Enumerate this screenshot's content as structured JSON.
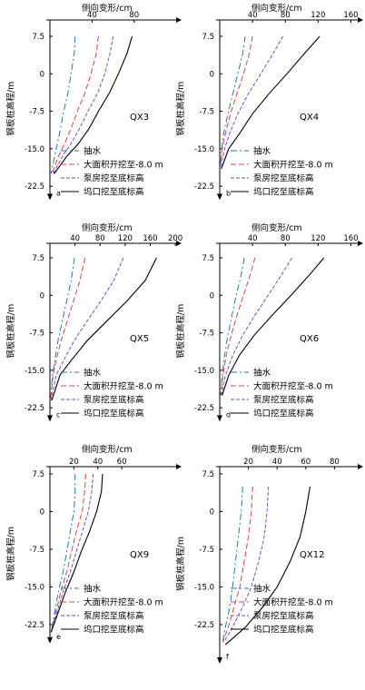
{
  "figure": {
    "x_axis_label": "侧向变形/cm",
    "y_axis_label": "钢板桩高程/m",
    "legend_items": [
      "抽水",
      "大面积开挖至-8.0 m",
      "泵房挖至底标高",
      "坞口挖至底标高"
    ],
    "series_colors": [
      "#1f77c0",
      "#e0403a",
      "#6a52c8",
      "#000000"
    ]
  },
  "chart_data": [
    {
      "panel_label": "a",
      "pile_id": "QX3",
      "type": "line",
      "xticks": [
        40,
        80
      ],
      "xlim": [
        0,
        125
      ],
      "yticks": [
        7.5,
        0,
        -7.5,
        -15.0,
        -22.5
      ],
      "ylim": [
        -24,
        9
      ],
      "series": [
        {
          "name": "抽水",
          "points": [
            [
              24,
              7.5
            ],
            [
              23,
              4
            ],
            [
              20,
              0
            ],
            [
              17,
              -4
            ],
            [
              13,
              -7.5
            ],
            [
              10,
              -11
            ],
            [
              7,
              -14
            ],
            [
              4,
              -17
            ],
            [
              1,
              -20
            ]
          ]
        },
        {
          "name": "大面积开挖至-8.0 m",
          "points": [
            [
              46,
              7.5
            ],
            [
              44,
              4
            ],
            [
              39,
              0
            ],
            [
              33,
              -4
            ],
            [
              26,
              -7.5
            ],
            [
              20,
              -11
            ],
            [
              14,
              -14
            ],
            [
              8,
              -16.5
            ],
            [
              2,
              -20
            ]
          ]
        },
        {
          "name": "泵房挖至底标高",
          "points": [
            [
              60,
              7.5
            ],
            [
              57,
              4
            ],
            [
              52,
              0
            ],
            [
              45,
              -4
            ],
            [
              36,
              -7.5
            ],
            [
              28,
              -11
            ],
            [
              20,
              -14
            ],
            [
              12,
              -16.5
            ],
            [
              3,
              -20
            ]
          ]
        },
        {
          "name": "坞口挖至底标高",
          "points": [
            [
              78,
              7.5
            ],
            [
              73,
              4
            ],
            [
              65,
              0
            ],
            [
              56,
              -4
            ],
            [
              46,
              -7.5
            ],
            [
              37,
              -11
            ],
            [
              27,
              -14
            ],
            [
              16,
              -16.5
            ],
            [
              4,
              -20
            ]
          ]
        }
      ],
      "legend": true
    },
    {
      "panel_label": "b",
      "pile_id": "QX4",
      "type": "line",
      "xticks": [
        40,
        80,
        120,
        160
      ],
      "xlim": [
        0,
        175
      ],
      "yticks": [
        7.5,
        0,
        -7.5,
        -15.0,
        -22.5
      ],
      "ylim": [
        -24,
        9
      ],
      "series": [
        {
          "name": "抽水",
          "points": [
            [
              31,
              7.5
            ],
            [
              28,
              4
            ],
            [
              22,
              0
            ],
            [
              16,
              -4
            ],
            [
              10,
              -8
            ],
            [
              6,
              -11
            ],
            [
              3,
              -14
            ],
            [
              1,
              -18
            ]
          ]
        },
        {
          "name": "大面积开挖至-8.0 m",
          "points": [
            [
              40,
              7.5
            ],
            [
              36,
              4
            ],
            [
              29,
              0
            ],
            [
              21,
              -4
            ],
            [
              13,
              -8
            ],
            [
              7,
              -12
            ],
            [
              3,
              -15
            ],
            [
              1,
              -18
            ]
          ]
        },
        {
          "name": "泵房挖至底标高",
          "points": [
            [
              77,
              7.5
            ],
            [
              65,
              4
            ],
            [
              50,
              0
            ],
            [
              35,
              -4
            ],
            [
              22,
              -8
            ],
            [
              12,
              -12
            ],
            [
              6,
              -15
            ],
            [
              1,
              -19
            ]
          ]
        },
        {
          "name": "坞口挖至底标高",
          "points": [
            [
              122,
              7.5
            ],
            [
              103,
              4
            ],
            [
              82,
              0
            ],
            [
              60,
              -4
            ],
            [
              40,
              -8
            ],
            [
              24,
              -12
            ],
            [
              11,
              -15
            ],
            [
              2,
              -19
            ]
          ]
        }
      ],
      "legend": true
    },
    {
      "panel_label": "c",
      "pile_id": "QX5",
      "type": "line",
      "xticks": [
        40,
        80,
        120,
        160,
        200
      ],
      "xlim": [
        0,
        210
      ],
      "yticks": [
        7.5,
        0,
        -7.5,
        -15.0,
        -22.5
      ],
      "ylim": [
        -24,
        9
      ],
      "series": [
        {
          "name": "抽水",
          "points": [
            [
              39,
              7.5
            ],
            [
              34,
              3
            ],
            [
              27,
              -1
            ],
            [
              20,
              -5
            ],
            [
              13,
              -9
            ],
            [
              8,
              -13
            ],
            [
              4,
              -16
            ],
            [
              1,
              -21
            ]
          ]
        },
        {
          "name": "大面积开挖至-8.0 m",
          "points": [
            [
              56,
              7.5
            ],
            [
              48,
              3
            ],
            [
              38,
              -1
            ],
            [
              28,
              -5
            ],
            [
              18,
              -9
            ],
            [
              10,
              -13
            ],
            [
              5,
              -16
            ],
            [
              1,
              -21
            ]
          ]
        },
        {
          "name": "泵房挖至底标高",
          "points": [
            [
              117,
              7.5
            ],
            [
              102,
              3
            ],
            [
              82,
              -1
            ],
            [
              60,
              -5
            ],
            [
              39,
              -9
            ],
            [
              22,
              -13
            ],
            [
              10,
              -16
            ],
            [
              2,
              -21
            ]
          ]
        },
        {
          "name": "坞口挖至底标高",
          "points": [
            [
              170,
              7.5
            ],
            [
              152,
              3
            ],
            [
              124,
              -1
            ],
            [
              92,
              -5
            ],
            [
              60,
              -9
            ],
            [
              34,
              -13
            ],
            [
              16,
              -16
            ],
            [
              3,
              -21
            ]
          ]
        }
      ],
      "legend": true
    },
    {
      "panel_label": "d",
      "pile_id": "QX6",
      "type": "line",
      "xticks": [
        40,
        80,
        120,
        160
      ],
      "xlim": [
        0,
        175
      ],
      "yticks": [
        7.5,
        0,
        -7.5,
        -15.0,
        -22.5
      ],
      "ylim": [
        -24,
        9
      ],
      "series": [
        {
          "name": "抽水",
          "points": [
            [
              30,
              7.5
            ],
            [
              26,
              4
            ],
            [
              20,
              0
            ],
            [
              15,
              -4
            ],
            [
              10,
              -8
            ],
            [
              6,
              -12
            ],
            [
              3,
              -16
            ],
            [
              1,
              -20
            ]
          ]
        },
        {
          "name": "大面积开挖至-8.0 m",
          "points": [
            [
              43,
              7.5
            ],
            [
              37,
              4
            ],
            [
              29,
              0
            ],
            [
              21,
              -4
            ],
            [
              14,
              -8
            ],
            [
              8,
              -12
            ],
            [
              4,
              -16
            ],
            [
              1,
              -20
            ]
          ]
        },
        {
          "name": "泵房挖至底标高",
          "points": [
            [
              88,
              7.5
            ],
            [
              75,
              4
            ],
            [
              59,
              0
            ],
            [
              43,
              -4
            ],
            [
              28,
              -8
            ],
            [
              16,
              -12
            ],
            [
              7,
              -16
            ],
            [
              2,
              -20
            ]
          ]
        },
        {
          "name": "坞口挖至底标高",
          "points": [
            [
              127,
              7.5
            ],
            [
              109,
              4
            ],
            [
              87,
              0
            ],
            [
              64,
              -4
            ],
            [
              42,
              -8
            ],
            [
              24,
              -12
            ],
            [
              11,
              -16
            ],
            [
              3,
              -20
            ]
          ]
        }
      ],
      "legend": true
    },
    {
      "panel_label": "e",
      "pile_id": "QX9",
      "type": "line",
      "xticks": [
        20,
        40,
        60
      ],
      "xlim": [
        0,
        110
      ],
      "yticks": [
        7.5,
        0,
        -7.5,
        -15.0,
        -22.5
      ],
      "ylim": [
        -25,
        9
      ],
      "series": [
        {
          "name": "抽水",
          "points": [
            [
              21,
              7.5
            ],
            [
              21,
              4
            ],
            [
              20,
              0
            ],
            [
              17,
              -4
            ],
            [
              14,
              -8
            ],
            [
              11,
              -12
            ],
            [
              7,
              -16
            ],
            [
              4,
              -20
            ],
            [
              1,
              -24
            ]
          ]
        },
        {
          "name": "大面积开挖至-8.0 m",
          "points": [
            [
              30,
              7.5
            ],
            [
              29,
              4
            ],
            [
              27,
              0
            ],
            [
              22,
              -4
            ],
            [
              18,
              -8
            ],
            [
              14,
              -12
            ],
            [
              9,
              -16
            ],
            [
              5,
              -20
            ],
            [
              1,
              -24
            ]
          ]
        },
        {
          "name": "泵房挖至底标高",
          "points": [
            [
              36,
              7.5
            ],
            [
              35,
              4
            ],
            [
              32,
              0
            ],
            [
              27,
              -4
            ],
            [
              22,
              -8
            ],
            [
              17,
              -12
            ],
            [
              11,
              -16
            ],
            [
              6,
              -20
            ],
            [
              1,
              -24
            ]
          ]
        },
        {
          "name": "坞口挖至底标高",
          "points": [
            [
              44,
              7.5
            ],
            [
              43,
              4
            ],
            [
              39,
              0
            ],
            [
              33,
              -4
            ],
            [
              26,
              -8
            ],
            [
              20,
              -12
            ],
            [
              13,
              -16
            ],
            [
              7,
              -20
            ],
            [
              1,
              -24
            ]
          ]
        }
      ],
      "legend": true
    },
    {
      "panel_label": "f",
      "pile_id": "QX12",
      "type": "line",
      "xticks": [
        20,
        40,
        60,
        80
      ],
      "xlim": [
        0,
        100
      ],
      "yticks": [
        7.5,
        0,
        -7.5,
        -15.0,
        -22.5
      ],
      "ylim": [
        -29,
        9
      ],
      "series": [
        {
          "name": "抽水",
          "points": [
            [
              16,
              5
            ],
            [
              15,
              0
            ],
            [
              13,
              -5
            ],
            [
              11,
              -10
            ],
            [
              9,
              -15
            ],
            [
              7,
              -19
            ],
            [
              4,
              -23
            ],
            [
              2,
              -26
            ]
          ]
        },
        {
          "name": "大面积开挖至-8.0 m",
          "points": [
            [
              23,
              5
            ],
            [
              22,
              0
            ],
            [
              20,
              -5
            ],
            [
              17,
              -10
            ],
            [
              14,
              -15
            ],
            [
              10,
              -19
            ],
            [
              6,
              -23
            ],
            [
              2,
              -26
            ]
          ]
        },
        {
          "name": "泵房挖至底标高",
          "points": [
            [
              34,
              5
            ],
            [
              33,
              0
            ],
            [
              31,
              -5
            ],
            [
              27,
              -10
            ],
            [
              22,
              -15
            ],
            [
              16,
              -19
            ],
            [
              9,
              -23
            ],
            [
              3,
              -26
            ]
          ]
        },
        {
          "name": "坞口挖至底标高",
          "points": [
            [
              63,
              5
            ],
            [
              60,
              0
            ],
            [
              56,
              -5
            ],
            [
              49,
              -10
            ],
            [
              40,
              -15
            ],
            [
              30,
              -19
            ],
            [
              18,
              -23
            ],
            [
              4,
              -26.5
            ]
          ]
        }
      ],
      "legend": true
    }
  ]
}
